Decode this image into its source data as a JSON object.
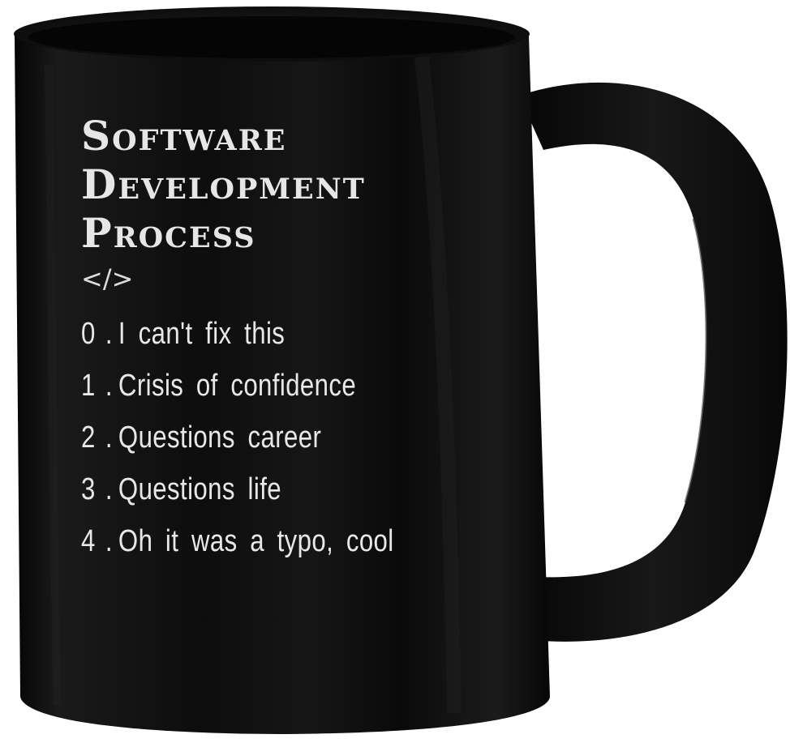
{
  "product": {
    "title_lines": [
      "Software",
      "Development",
      "Process"
    ],
    "code_tag": "</>",
    "steps": [
      {
        "number": "0",
        "text": "I can't fix this"
      },
      {
        "number": "1",
        "text": "Crisis of confidence"
      },
      {
        "number": "2",
        "text": "Questions career"
      },
      {
        "number": "3",
        "text": "Questions life"
      },
      {
        "number": "4",
        "text": "Oh it was a typo, cool"
      }
    ]
  },
  "colors": {
    "mug": "#0b0b0b",
    "print": "#e6e6e6",
    "background": "#ffffff"
  }
}
